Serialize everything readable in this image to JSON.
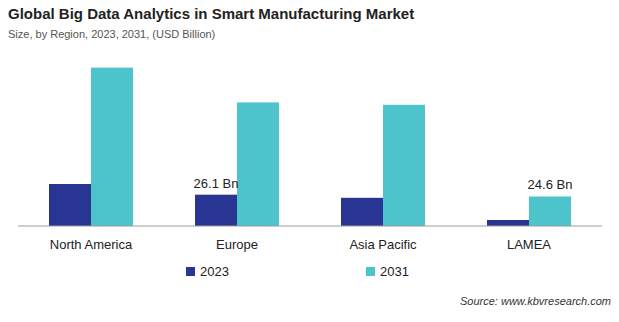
{
  "chart_data": {
    "type": "bar",
    "title": "Global Big Data Analytics in Smart Manufacturing Market",
    "subtitle": "Size, by Region, 2023, 2031, (USD Billion)",
    "source": "Source: www.kbvresearch.com",
    "categories": [
      "North America",
      "Europe",
      "Asia Pacific",
      "LAMEA"
    ],
    "series": [
      {
        "name": "2023",
        "color": "#283593",
        "values": [
          35,
          26.1,
          23.5,
          5
        ],
        "value_labels": [
          null,
          "26.1 Bn",
          null,
          null
        ]
      },
      {
        "name": "2031",
        "color": "#4dc3cc",
        "values": [
          132,
          103,
          101,
          24.6
        ],
        "value_labels": [
          null,
          null,
          null,
          "24.6 Bn"
        ]
      }
    ],
    "ylim": [
      0,
      135
    ],
    "tick_labels": "x",
    "data_labels": true,
    "grid": false,
    "legend": "bottom"
  }
}
